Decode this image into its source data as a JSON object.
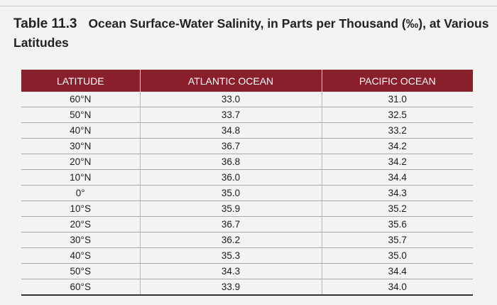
{
  "caption": {
    "label": "Table 11.3",
    "title": "Ocean Surface-Water Salinity, in Parts per Thousand (‰), at Various Latitudes"
  },
  "columns": [
    "LATITUDE",
    "ATLANTIC OCEAN",
    "PACIFIC OCEAN"
  ],
  "rows": [
    [
      "60°N",
      "33.0",
      "31.0"
    ],
    [
      "50°N",
      "33.7",
      "32.5"
    ],
    [
      "40°N",
      "34.8",
      "33.2"
    ],
    [
      "30°N",
      "36.7",
      "34.2"
    ],
    [
      "20°N",
      "36.8",
      "34.2"
    ],
    [
      "10°N",
      "36.0",
      "34.4"
    ],
    [
      "0°",
      "35.0",
      "34.3"
    ],
    [
      "10°S",
      "35.9",
      "35.2"
    ],
    [
      "20°S",
      "36.7",
      "35.6"
    ],
    [
      "30°S",
      "36.2",
      "35.7"
    ],
    [
      "40°S",
      "35.3",
      "35.0"
    ],
    [
      "50°S",
      "34.3",
      "34.4"
    ],
    [
      "60°S",
      "33.9",
      "34.0"
    ]
  ],
  "colors": {
    "header_bg": "#8a1f2c",
    "header_text": "#ffffff"
  }
}
